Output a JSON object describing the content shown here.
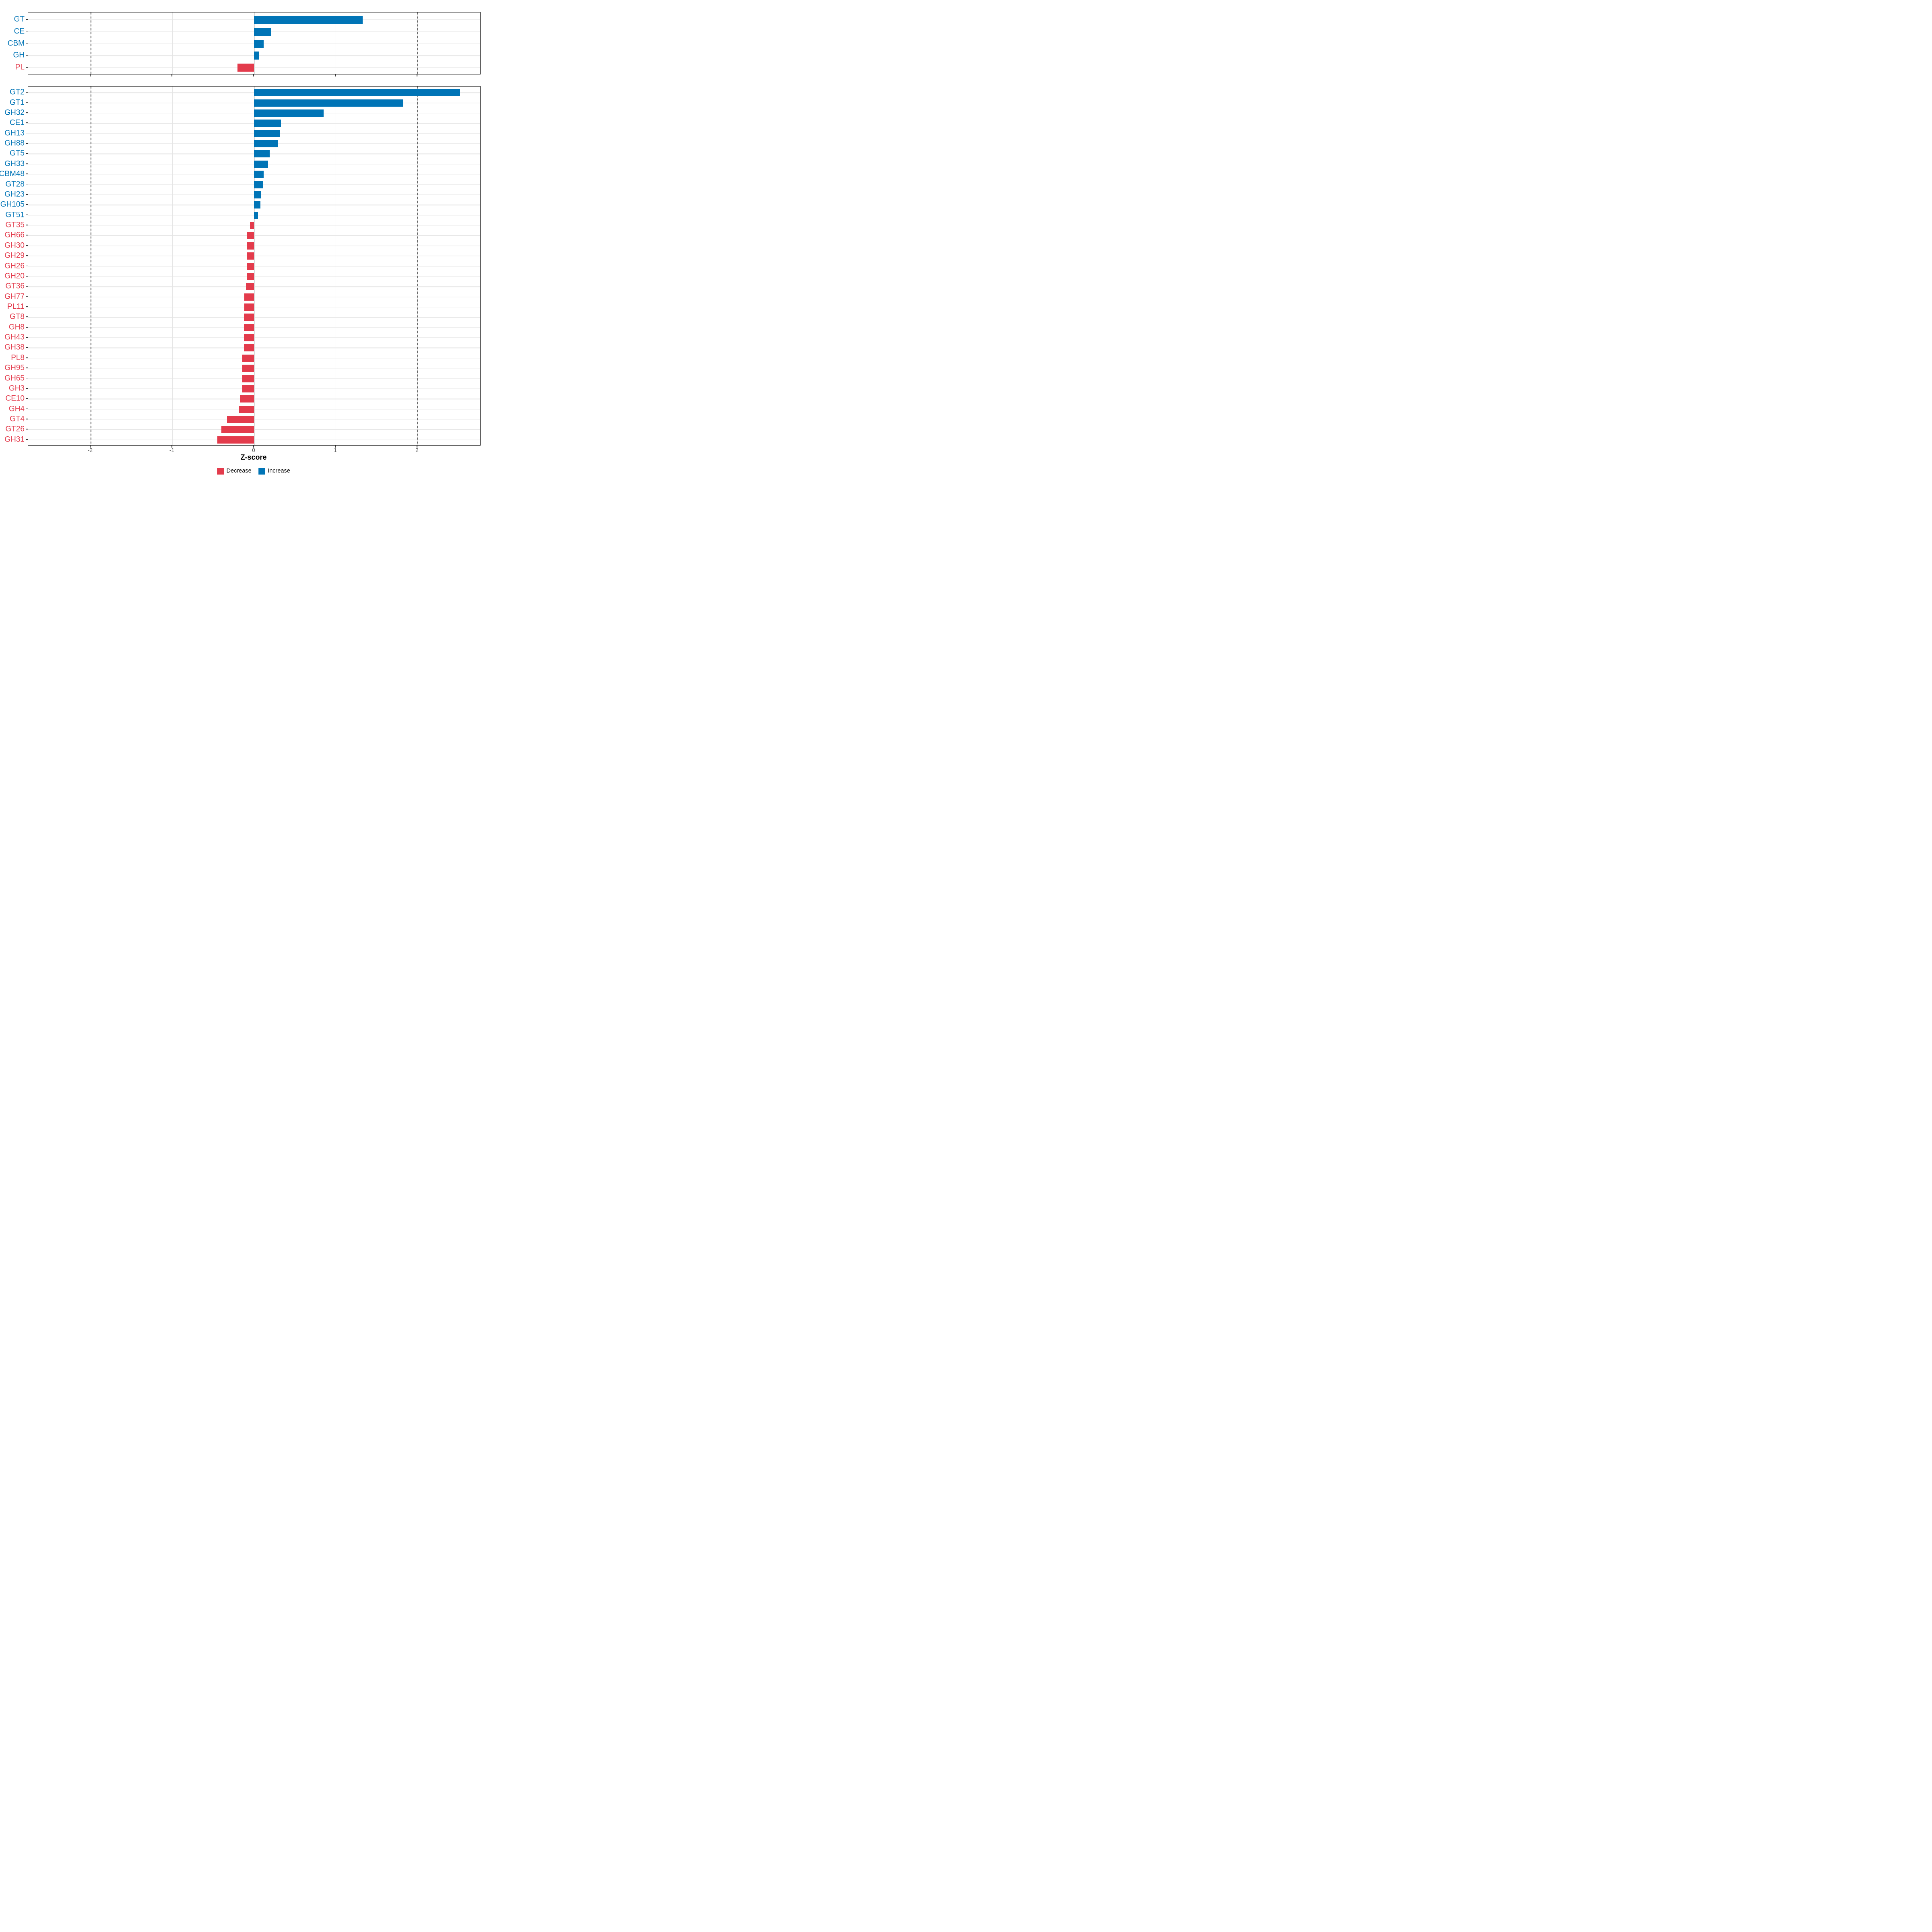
{
  "chart_data": {
    "type": "bar",
    "orientation": "horizontal",
    "title": "",
    "xlabel": "Z-score",
    "ylabel": "",
    "x_ticks": [
      -2,
      -1,
      0,
      1,
      2
    ],
    "x_range": [
      -2.76,
      2.78
    ],
    "grid": true,
    "legend_position": "bottom",
    "reference_lines_dashed": [
      -2,
      2
    ],
    "colors": {
      "increase": "#0074B6",
      "decrease": "#E33B4C"
    },
    "legend": [
      {
        "label": "Decrease",
        "key": "decrease"
      },
      {
        "label": "Increase",
        "key": "increase"
      }
    ],
    "panels": [
      {
        "name": "enzyme-class-panel",
        "categories": [
          "GT",
          "CE",
          "CBM",
          "GH",
          "PL"
        ],
        "values": [
          1.33,
          0.21,
          0.12,
          0.06,
          -0.2
        ]
      },
      {
        "name": "enzyme-family-panel",
        "categories": [
          "GT2",
          "GT1",
          "GH32",
          "CE1",
          "GH13",
          "GH88",
          "GT5",
          "GH33",
          "CBM48",
          "GT28",
          "GH23",
          "GH105",
          "GT51",
          "GT35",
          "GH66",
          "GH30",
          "GH29",
          "GH26",
          "GH20",
          "GT36",
          "GH77",
          "PL11",
          "GT8",
          "GH8",
          "GH43",
          "GH38",
          "PL8",
          "GH95",
          "GH65",
          "GH3",
          "CE10",
          "GH4",
          "GT4",
          "GT26",
          "GH31"
        ],
        "values": [
          2.52,
          1.83,
          0.85,
          0.33,
          0.32,
          0.29,
          0.19,
          0.17,
          0.12,
          0.115,
          0.09,
          0.08,
          0.05,
          -0.05,
          -0.083,
          -0.084,
          -0.085,
          -0.086,
          -0.088,
          -0.1,
          -0.119,
          -0.12,
          -0.121,
          -0.122,
          -0.123,
          -0.124,
          -0.142,
          -0.143,
          -0.144,
          -0.145,
          -0.167,
          -0.18,
          -0.33,
          -0.4,
          -0.45
        ]
      }
    ]
  }
}
